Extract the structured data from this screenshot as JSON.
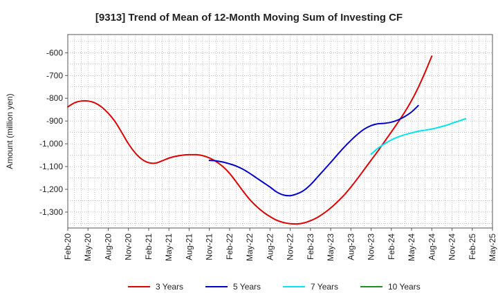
{
  "chart_data": {
    "type": "line",
    "title": "[9313]  Trend of Mean of 12-Month Moving Sum of Investing CF",
    "xlabel": "",
    "ylabel": "Amount (million yen)",
    "ylim": [
      -1370,
      -520
    ],
    "yticks": [
      -600,
      -700,
      -800,
      -900,
      -1000,
      -1100,
      -1200,
      -1300
    ],
    "ytick_labels": [
      "-600",
      "-700",
      "-800",
      "-900",
      "-1,000",
      "-1,100",
      "-1,200",
      "-1,300"
    ],
    "x_tick_labels": [
      "Feb-20",
      "May-20",
      "Aug-20",
      "Nov-20",
      "Feb-21",
      "May-21",
      "Aug-21",
      "Nov-21",
      "Feb-22",
      "May-22",
      "Aug-22",
      "Nov-22",
      "Feb-23",
      "May-23",
      "Aug-23",
      "Nov-23",
      "Feb-24",
      "May-24",
      "Aug-24",
      "Nov-24",
      "Feb-25",
      "May-25"
    ],
    "x_start": "Feb-20",
    "x_end": "May-25",
    "grid": true,
    "legend_position": "bottom",
    "series": [
      {
        "name": "3 Years",
        "color": "#dd0000",
        "start_month_index": 0,
        "values": [
          -838,
          -820,
          -812,
          -812,
          -820,
          -838,
          -866,
          -902,
          -950,
          -1000,
          -1040,
          -1068,
          -1083,
          -1085,
          -1075,
          -1063,
          -1055,
          -1050,
          -1048,
          -1048,
          -1052,
          -1062,
          -1078,
          -1100,
          -1130,
          -1168,
          -1208,
          -1245,
          -1275,
          -1300,
          -1320,
          -1336,
          -1346,
          -1351,
          -1352,
          -1348,
          -1338,
          -1324,
          -1305,
          -1282,
          -1255,
          -1225,
          -1190,
          -1152,
          -1112,
          -1072,
          -1032,
          -990,
          -948,
          -905,
          -860,
          -810,
          -752,
          -686,
          -615
        ]
      },
      {
        "name": "5 Years",
        "color": "#0000cc",
        "start_month_index": 21,
        "values": [
          -1073,
          -1075,
          -1080,
          -1088,
          -1098,
          -1112,
          -1130,
          -1150,
          -1170,
          -1190,
          -1212,
          -1225,
          -1228,
          -1220,
          -1205,
          -1180,
          -1148,
          -1115,
          -1082,
          -1048,
          -1015,
          -985,
          -958,
          -935,
          -920,
          -912,
          -910,
          -905,
          -895,
          -880,
          -860,
          -832
        ]
      },
      {
        "name": "7 Years",
        "color": "#00e5ee",
        "start_month_index": 45,
        "values": [
          -1045,
          -1020,
          -1000,
          -983,
          -970,
          -960,
          -952,
          -945,
          -940,
          -935,
          -928,
          -920,
          -910,
          -900,
          -890
        ]
      },
      {
        "name": "10 Years",
        "color": "#228b22",
        "start_month_index": 0,
        "values": []
      }
    ]
  }
}
